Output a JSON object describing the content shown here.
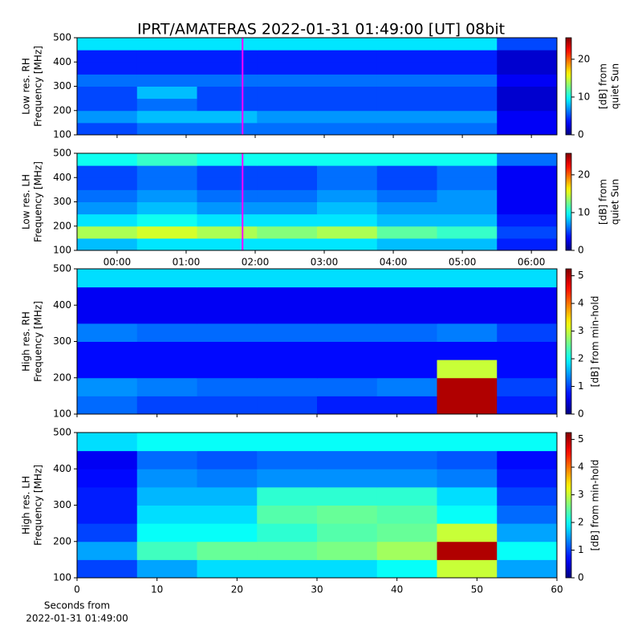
{
  "title": "IPRT/AMATERAS 2022-01-31 01:49:00 [UT]   08bit",
  "chart_data": [
    {
      "type": "heatmap",
      "ylabel": [
        "Low res. RH",
        "Frequency [MHz]"
      ],
      "colorbar_label": [
        "[dB] from",
        "quiet Sun"
      ],
      "xlim": [
        -0.58,
        6.37
      ],
      "xticks": [
        0,
        1,
        2,
        3,
        4,
        5,
        6
      ],
      "ylim": [
        100,
        500
      ],
      "yticks": [
        100,
        200,
        300,
        400,
        500
      ],
      "clim": [
        0,
        25.7
      ],
      "cticks": [
        0,
        10,
        20
      ],
      "colormap": "jet",
      "markers": [
        1.817
      ],
      "marker_color": "#ff00ff",
      "z": [
        [
          5,
          6,
          6,
          6,
          6,
          6,
          6,
          3
        ],
        [
          7,
          8,
          8,
          7,
          7,
          7,
          7,
          3
        ],
        [
          5,
          6,
          5,
          5,
          5,
          5,
          5,
          2
        ],
        [
          5,
          8,
          5,
          5,
          5,
          5,
          5,
          2
        ],
        [
          6,
          6,
          6,
          6,
          6,
          6,
          6,
          3
        ],
        [
          4,
          4,
          4,
          4,
          4,
          4,
          4,
          2
        ],
        [
          4,
          4,
          4,
          4,
          4,
          4,
          4,
          2
        ],
        [
          9,
          9,
          9,
          9,
          9,
          9,
          9,
          5
        ]
      ]
    },
    {
      "type": "heatmap",
      "ylabel": [
        "Low res. LH",
        "Frequency [MHz]"
      ],
      "colorbar_label": [
        "[dB] from",
        "quiet Sun"
      ],
      "xlim": [
        -0.58,
        6.37
      ],
      "xticks": [
        {
          "value": 0,
          "label": "00:00"
        },
        {
          "value": 1,
          "label": "01:00"
        },
        {
          "value": 2,
          "label": "02:00"
        },
        {
          "value": 3,
          "label": "03:00"
        },
        {
          "value": 4,
          "label": "04:00"
        },
        {
          "value": 5,
          "label": "05:00"
        },
        {
          "value": 6,
          "label": "06:00"
        }
      ],
      "ylim": [
        100,
        500
      ],
      "yticks": [
        100,
        200,
        300,
        400,
        500
      ],
      "clim": [
        0,
        25.7
      ],
      "cticks": [
        0,
        10,
        20
      ],
      "colormap": "jet",
      "markers": [
        1.817
      ],
      "marker_color": "#ff00ff",
      "z": [
        [
          8,
          9,
          9,
          9,
          9,
          8,
          8,
          4
        ],
        [
          14,
          15,
          14,
          13,
          14,
          12,
          11,
          5
        ],
        [
          9,
          10,
          9,
          9,
          9,
          8,
          8,
          4
        ],
        [
          7,
          8,
          7,
          7,
          8,
          7,
          7,
          3
        ],
        [
          6,
          7,
          6,
          6,
          7,
          6,
          7,
          3
        ],
        [
          5,
          6,
          5,
          5,
          6,
          5,
          6,
          3
        ],
        [
          5,
          6,
          5,
          5,
          6,
          5,
          6,
          3
        ],
        [
          10,
          11,
          10,
          10,
          10,
          10,
          10,
          6
        ]
      ]
    },
    {
      "type": "heatmap",
      "ylabel": [
        "High res. RH",
        "Frequency [MHz]"
      ],
      "colorbar_label": [
        "[dB] from min-hold"
      ],
      "xlim": [
        0,
        60
      ],
      "xticks": [
        0,
        10,
        20,
        30,
        40,
        50,
        60
      ],
      "ylim": [
        100,
        500
      ],
      "yticks": [
        100,
        200,
        300,
        400,
        500
      ],
      "clim": [
        0,
        5.25
      ],
      "cticks": [
        0,
        1,
        2,
        3,
        4,
        5
      ],
      "colormap": "jet",
      "z": [
        [
          1.2,
          1,
          1,
          1,
          0.8,
          0.8,
          5,
          0.8
        ],
        [
          1.4,
          1.3,
          1.2,
          1.2,
          1.2,
          1.3,
          5,
          1
        ],
        [
          0.7,
          0.7,
          0.7,
          0.7,
          0.7,
          0.7,
          3,
          0.7
        ],
        [
          0.7,
          0.7,
          0.7,
          0.7,
          0.7,
          0.7,
          0.7,
          0.7
        ],
        [
          1.3,
          1.2,
          1.2,
          1.2,
          1.2,
          1.2,
          1.3,
          1
        ],
        [
          0.6,
          0.6,
          0.6,
          0.6,
          0.6,
          0.6,
          0.6,
          0.6
        ],
        [
          0.6,
          0.6,
          0.6,
          0.6,
          0.6,
          0.6,
          0.6,
          0.6
        ],
        [
          1.8,
          1.8,
          1.8,
          1.8,
          1.8,
          1.8,
          1.8,
          1.8
        ]
      ]
    },
    {
      "type": "heatmap",
      "ylabel": [
        "High res. LH",
        "Frequency [MHz]"
      ],
      "colorbar_label": [
        "[dB] from min-hold"
      ],
      "xlabel": [
        "Seconds from",
        "2022-01-31 01:49:00"
      ],
      "xlim": [
        0,
        60
      ],
      "xticks": [
        0,
        10,
        20,
        30,
        40,
        50,
        60
      ],
      "show_xticklabels": true,
      "ylim": [
        100,
        500
      ],
      "yticks": [
        100,
        200,
        300,
        400,
        500
      ],
      "clim": [
        0,
        5.25
      ],
      "cticks": [
        0,
        1,
        2,
        3,
        4,
        5
      ],
      "colormap": "jet",
      "z": [
        [
          1,
          1.5,
          1.8,
          1.8,
          1.8,
          2,
          3,
          1.5
        ],
        [
          1.5,
          2.3,
          2.5,
          2.5,
          2.6,
          2.8,
          5,
          2
        ],
        [
          1,
          2,
          2,
          2.2,
          2.4,
          2.5,
          3,
          1.5
        ],
        [
          0.8,
          1.8,
          1.8,
          2.4,
          2.5,
          2.4,
          2,
          1.2
        ],
        [
          0.8,
          1.6,
          1.6,
          2.2,
          2.2,
          2.2,
          1.8,
          1
        ],
        [
          0.7,
          1.4,
          1.3,
          1.4,
          1.4,
          1.4,
          1.3,
          0.8
        ],
        [
          0.6,
          1.2,
          1.1,
          1.2,
          1.2,
          1.2,
          1.1,
          0.7
        ],
        [
          1.8,
          2,
          2,
          2,
          2,
          2,
          2,
          2
        ]
      ]
    }
  ]
}
